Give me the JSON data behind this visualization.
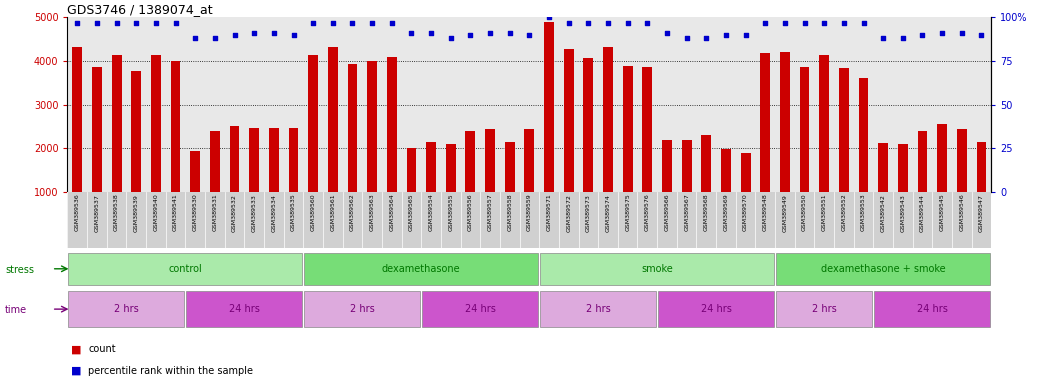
{
  "title": "GDS3746 / 1389074_at",
  "samples": [
    "GSM389536",
    "GSM389537",
    "GSM389538",
    "GSM389539",
    "GSM389540",
    "GSM389541",
    "GSM389530",
    "GSM389531",
    "GSM389532",
    "GSM389533",
    "GSM389534",
    "GSM389535",
    "GSM389560",
    "GSM389561",
    "GSM389562",
    "GSM389563",
    "GSM389564",
    "GSM389565",
    "GSM389554",
    "GSM389555",
    "GSM389556",
    "GSM389557",
    "GSM389558",
    "GSM389559",
    "GSM389571",
    "GSM389572",
    "GSM389573",
    "GSM389574",
    "GSM389575",
    "GSM389576",
    "GSM389566",
    "GSM389567",
    "GSM389568",
    "GSM389569",
    "GSM389570",
    "GSM389548",
    "GSM389549",
    "GSM389550",
    "GSM389551",
    "GSM389552",
    "GSM389553",
    "GSM389542",
    "GSM389543",
    "GSM389544",
    "GSM389545",
    "GSM389546",
    "GSM389547"
  ],
  "counts": [
    4320,
    3860,
    4140,
    3760,
    4140,
    4000,
    1950,
    2390,
    2520,
    2470,
    2460,
    2460,
    4130,
    4310,
    3920,
    4000,
    4100,
    2000,
    2140,
    2100,
    2400,
    2450,
    2140,
    2440,
    4900,
    4280,
    4060,
    4310,
    3880,
    3870,
    2190,
    2190,
    2300,
    1980,
    1900,
    4180,
    4200,
    3870,
    4130,
    3840,
    3610,
    2120,
    2110,
    2390,
    2560,
    2450,
    2140
  ],
  "percentiles": [
    97,
    97,
    97,
    97,
    97,
    97,
    88,
    88,
    90,
    91,
    91,
    90,
    97,
    97,
    97,
    97,
    97,
    91,
    91,
    88,
    90,
    91,
    91,
    90,
    100,
    97,
    97,
    97,
    97,
    97,
    91,
    88,
    88,
    90,
    90,
    97,
    97,
    97,
    97,
    97,
    97,
    88,
    88,
    90,
    91,
    91,
    90
  ],
  "ylim_left": [
    1000,
    5000
  ],
  "ylim_right": [
    0,
    100
  ],
  "bar_color": "#cc0000",
  "dot_color": "#0000cc",
  "stress_groups": [
    {
      "label": "control",
      "start": 0,
      "end": 12,
      "color": "#aaeaaa"
    },
    {
      "label": "dexamethasone",
      "start": 12,
      "end": 24,
      "color": "#77dd77"
    },
    {
      "label": "smoke",
      "start": 24,
      "end": 36,
      "color": "#aaeaaa"
    },
    {
      "label": "dexamethasone + smoke",
      "start": 36,
      "end": 47,
      "color": "#77dd77"
    }
  ],
  "time_groups": [
    {
      "label": "2 hrs",
      "start": 0,
      "end": 6,
      "color": "#ddaadd"
    },
    {
      "label": "24 hrs",
      "start": 6,
      "end": 12,
      "color": "#cc55cc"
    },
    {
      "label": "2 hrs",
      "start": 12,
      "end": 18,
      "color": "#ddaadd"
    },
    {
      "label": "24 hrs",
      "start": 18,
      "end": 24,
      "color": "#cc55cc"
    },
    {
      "label": "2 hrs",
      "start": 24,
      "end": 30,
      "color": "#ddaadd"
    },
    {
      "label": "24 hrs",
      "start": 30,
      "end": 36,
      "color": "#cc55cc"
    },
    {
      "label": "2 hrs",
      "start": 36,
      "end": 41,
      "color": "#ddaadd"
    },
    {
      "label": "24 hrs",
      "start": 41,
      "end": 47,
      "color": "#cc55cc"
    }
  ],
  "stress_label_color": "#007700",
  "time_label_color": "#770077",
  "legend_items": [
    {
      "label": "count",
      "color": "#cc0000"
    },
    {
      "label": "percentile rank within the sample",
      "color": "#0000cc"
    }
  ],
  "yticks_left": [
    1000,
    2000,
    3000,
    4000,
    5000
  ],
  "yticks_right": [
    0,
    25,
    50,
    75,
    100
  ],
  "grid_yvals": [
    2000,
    3000,
    4000
  ],
  "chart_bg": "#e8e8e8",
  "label_area_bg": "#d0d0d0"
}
